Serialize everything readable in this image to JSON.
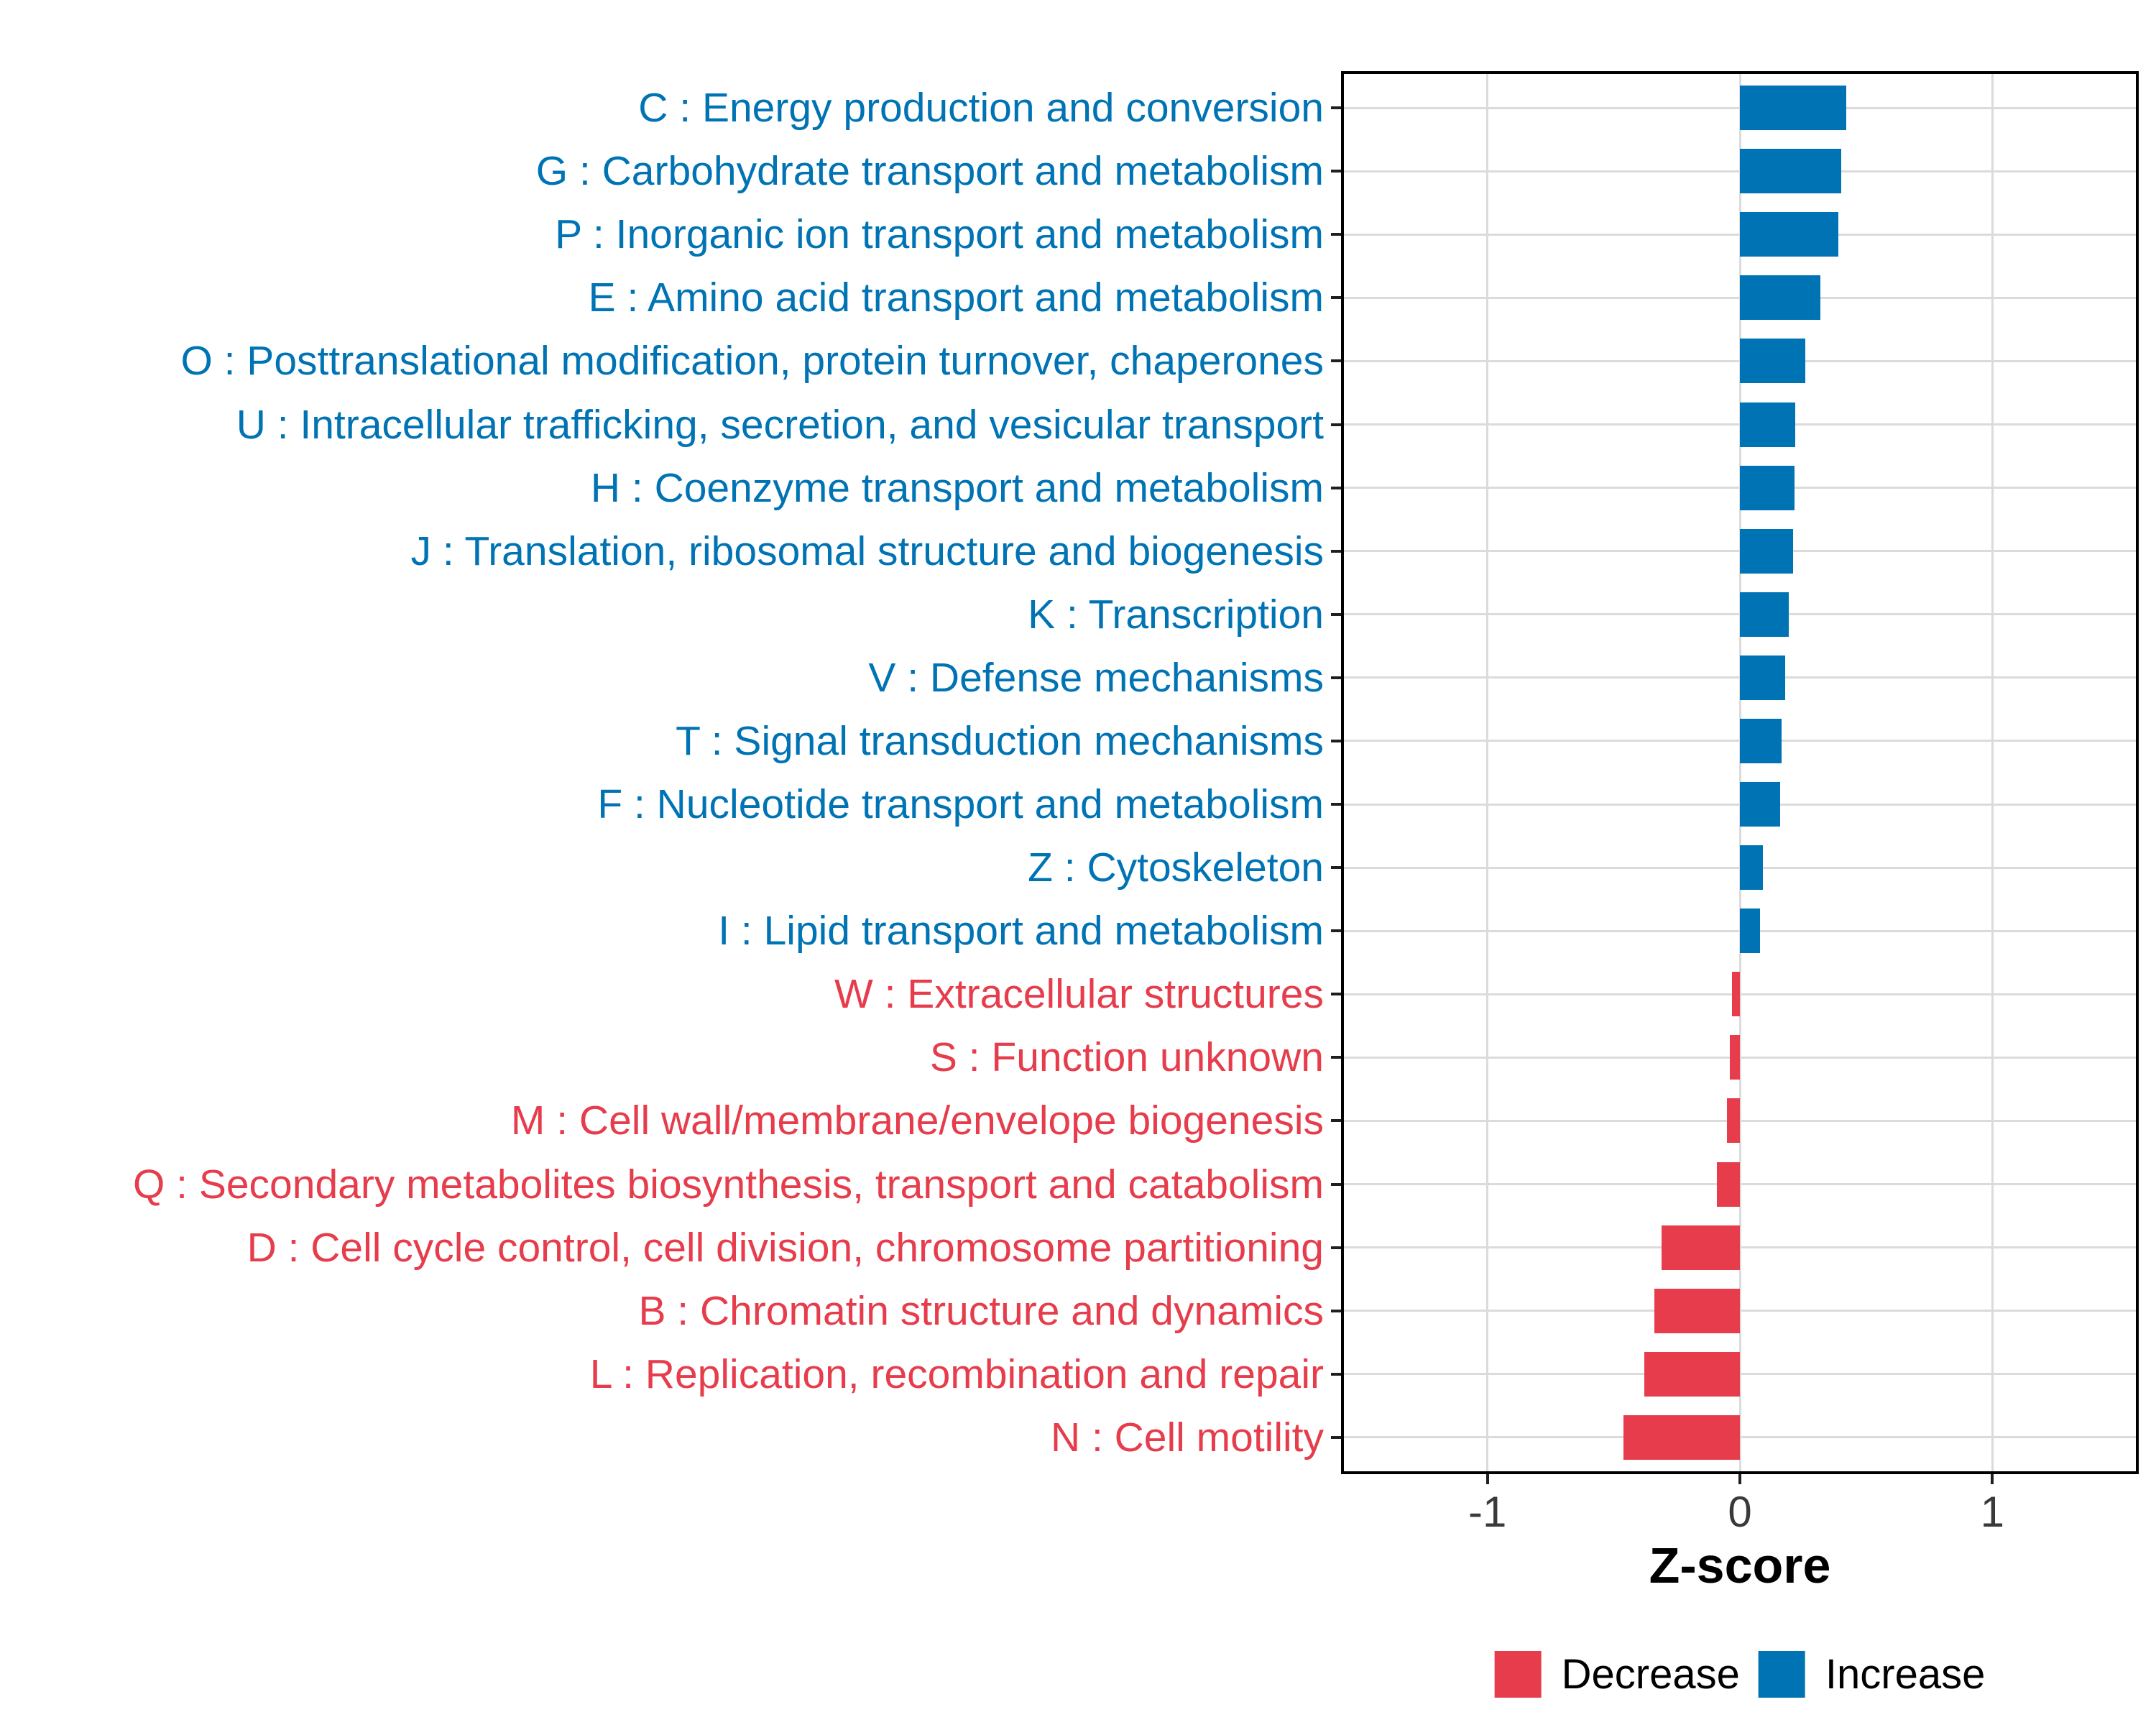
{
  "chart_data": {
    "type": "bar",
    "orientation": "horizontal",
    "title": "",
    "xlabel": "Z-score",
    "ylabel": "",
    "xlim": [
      -1.58,
      1.58
    ],
    "x_ticks": [
      -1,
      0,
      1
    ],
    "x_tick_labels": [
      "-1",
      "0",
      "1"
    ],
    "grid": true,
    "legend_position": "bottom",
    "bar_width_fraction": 0.7,
    "categories": [
      "C : Energy production and conversion",
      "G : Carbohydrate transport and metabolism",
      "P : Inorganic ion transport and metabolism",
      "E : Amino acid transport and metabolism",
      "O : Posttranslational modification, protein turnover, chaperones",
      "U : Intracellular trafficking, secretion, and vesicular transport",
      "H : Coenzyme transport and metabolism",
      "J : Translation, ribosomal structure and biogenesis",
      "K : Transcription",
      "V : Defense mechanisms",
      "T : Signal transduction mechanisms",
      "F : Nucleotide transport and metabolism",
      "Z : Cytoskeleton",
      "I : Lipid transport and metabolism",
      "W : Extracellular structures",
      "S : Function unknown",
      "M : Cell wall/membrane/envelope biogenesis",
      "Q : Secondary metabolites biosynthesis, transport and catabolism",
      "D : Cell cycle control, cell division, chromosome partitioning",
      "B : Chromatin structure and dynamics",
      "L : Replication, recombination and repair",
      "N : Cell motility"
    ],
    "values": [
      0.42,
      0.4,
      0.39,
      0.32,
      0.26,
      0.22,
      0.215,
      0.21,
      0.195,
      0.18,
      0.165,
      0.16,
      0.09,
      0.08,
      -0.03,
      -0.04,
      -0.05,
      -0.09,
      -0.31,
      -0.34,
      -0.38,
      -0.46
    ],
    "groups": [
      "Increase",
      "Increase",
      "Increase",
      "Increase",
      "Increase",
      "Increase",
      "Increase",
      "Increase",
      "Increase",
      "Increase",
      "Increase",
      "Increase",
      "Increase",
      "Increase",
      "Decrease",
      "Decrease",
      "Decrease",
      "Decrease",
      "Decrease",
      "Decrease",
      "Decrease",
      "Decrease"
    ],
    "group_colors": {
      "Increase": "#0073B4",
      "Decrease": "#E63C4B"
    }
  },
  "axis": {
    "xlabel": "Z-score",
    "tick_labels": [
      "-1",
      "0",
      "1"
    ]
  },
  "legend": {
    "items": [
      {
        "label": "Decrease",
        "color": "#E63C4B"
      },
      {
        "label": "Increase",
        "color": "#0073B4"
      }
    ]
  },
  "style": {
    "grid_color": "#DBDBDB",
    "axis_text_color": "#3A3A3A",
    "panel_border_color": "#000000",
    "tick_color": "#1F1F1F",
    "background": "#FFFFFF"
  }
}
